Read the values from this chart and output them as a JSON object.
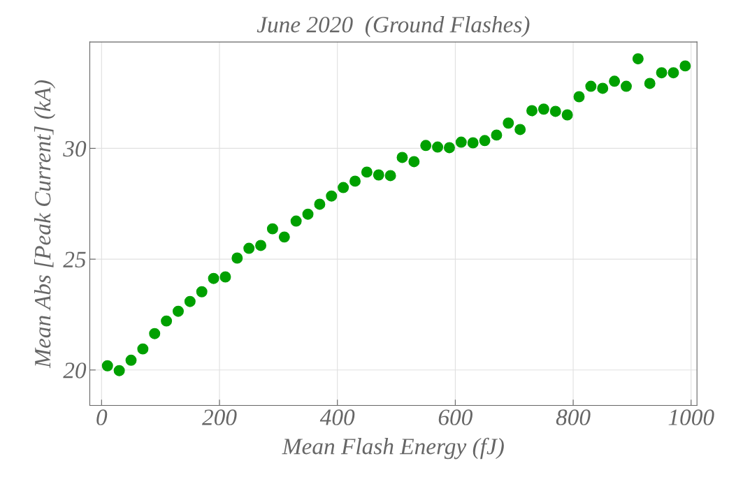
{
  "chart_data": {
    "type": "scatter",
    "title": "June 2020  (Ground Flashes)",
    "xlabel": "Mean Flash Energy (fJ)",
    "ylabel": "Mean Abs [Peak Current] (kA)",
    "x": [
      10,
      30,
      50,
      70,
      90,
      110,
      130,
      150,
      170,
      190,
      210,
      230,
      250,
      270,
      290,
      310,
      330,
      350,
      370,
      390,
      410,
      430,
      450,
      470,
      490,
      510,
      530,
      550,
      570,
      590,
      610,
      630,
      650,
      670,
      690,
      710,
      730,
      750,
      770,
      790,
      810,
      830,
      850,
      870,
      890,
      910,
      930,
      950,
      970,
      990
    ],
    "series": [
      {
        "color": "#00a000",
        "values": [
          20.19,
          19.97,
          20.44,
          20.95,
          21.64,
          22.21,
          22.65,
          23.09,
          23.53,
          24.13,
          24.2,
          25.05,
          25.49,
          25.62,
          26.37,
          26.0,
          26.72,
          27.03,
          27.48,
          27.85,
          28.23,
          28.52,
          28.93,
          28.8,
          28.77,
          29.59,
          29.4,
          30.13,
          30.06,
          30.03,
          30.28,
          30.25,
          30.35,
          30.6,
          31.14,
          30.85,
          31.7,
          31.77,
          31.67,
          31.51,
          32.33,
          32.8,
          32.71,
          33.03,
          32.8,
          34.04,
          32.93,
          33.41,
          33.41,
          33.72
        ]
      }
    ],
    "xlim": [
      -20,
      1010
    ],
    "ylim": [
      18.4,
      34.8
    ],
    "xticks": [
      0,
      200,
      400,
      600,
      800,
      1000
    ],
    "yticks": [
      20,
      25,
      30
    ],
    "grid": true,
    "legend": false,
    "marker": "circle"
  }
}
